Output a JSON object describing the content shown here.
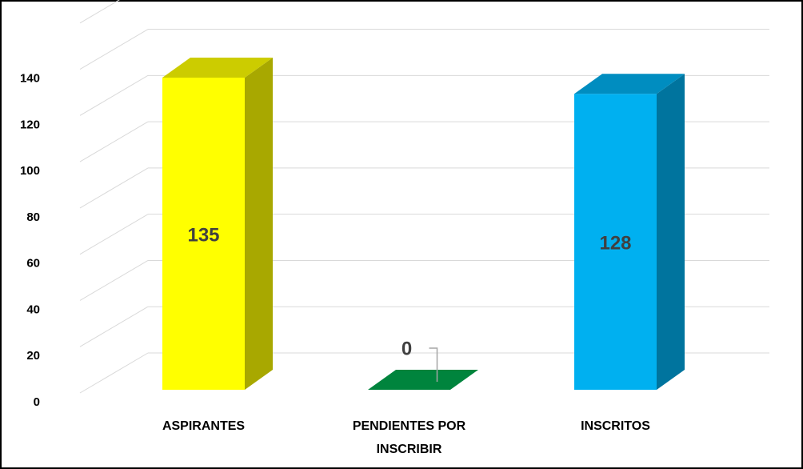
{
  "chart_data": {
    "type": "bar3d",
    "categories": [
      "ASPIRANTES",
      "PENDIENTES POR INSCRIBIR",
      "INSCRITOS"
    ],
    "values": [
      135,
      0,
      128
    ],
    "colors": [
      "#ffff00",
      "#00843d",
      "#00b0f0"
    ],
    "ylim": [
      0,
      160
    ],
    "yticks": [
      0,
      20,
      40,
      60,
      80,
      100,
      120,
      140
    ],
    "grid": true
  }
}
